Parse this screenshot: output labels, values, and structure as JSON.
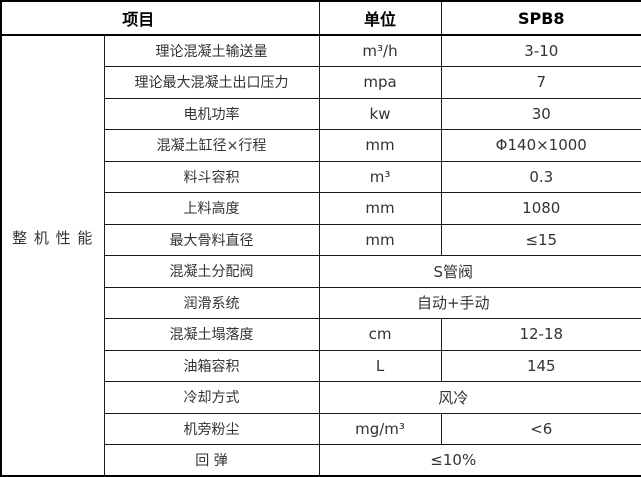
{
  "table": {
    "header": {
      "item": "项目",
      "unit": "单位",
      "model": "SPB8"
    },
    "group_label": "整 机 性 能",
    "rows": [
      {
        "label": "理论混凝土输送量",
        "unit": "m³/h",
        "value": "3-10",
        "merged": false
      },
      {
        "label": "理论最大混凝土出口压力",
        "unit": "mpa",
        "value": "7",
        "merged": false
      },
      {
        "label": "电机功率",
        "unit": "kw",
        "value": "30",
        "merged": false
      },
      {
        "label": "混凝土缸径×行程",
        "unit": "mm",
        "value": "Φ140×1000",
        "merged": false
      },
      {
        "label": "料斗容积",
        "unit": "m³",
        "value": "0.3",
        "merged": false
      },
      {
        "label": "上料高度",
        "unit": "mm",
        "value": "1080",
        "merged": false
      },
      {
        "label": "最大骨料直径",
        "unit": "mm",
        "value": "≤15",
        "merged": false
      },
      {
        "label": "混凝土分配阀",
        "unit": "",
        "value": "S管阀",
        "merged": true
      },
      {
        "label": "润滑系统",
        "unit": "",
        "value": "自动+手动",
        "merged": true
      },
      {
        "label": "混凝土塌落度",
        "unit": "cm",
        "value": "12-18",
        "merged": false
      },
      {
        "label": "油箱容积",
        "unit": "L",
        "value": "145",
        "merged": false
      },
      {
        "label": "冷却方式",
        "unit": "",
        "value": "风冷",
        "merged": true
      },
      {
        "label": "机旁粉尘",
        "unit": "mg/m³",
        "value": "<6",
        "merged": false
      },
      {
        "label": "回 弹",
        "unit": "",
        "value": "≤10%",
        "merged": true
      }
    ],
    "colors": {
      "border": "#000000",
      "text": "#333333",
      "header_text": "#000000",
      "background": "#ffffff"
    }
  }
}
